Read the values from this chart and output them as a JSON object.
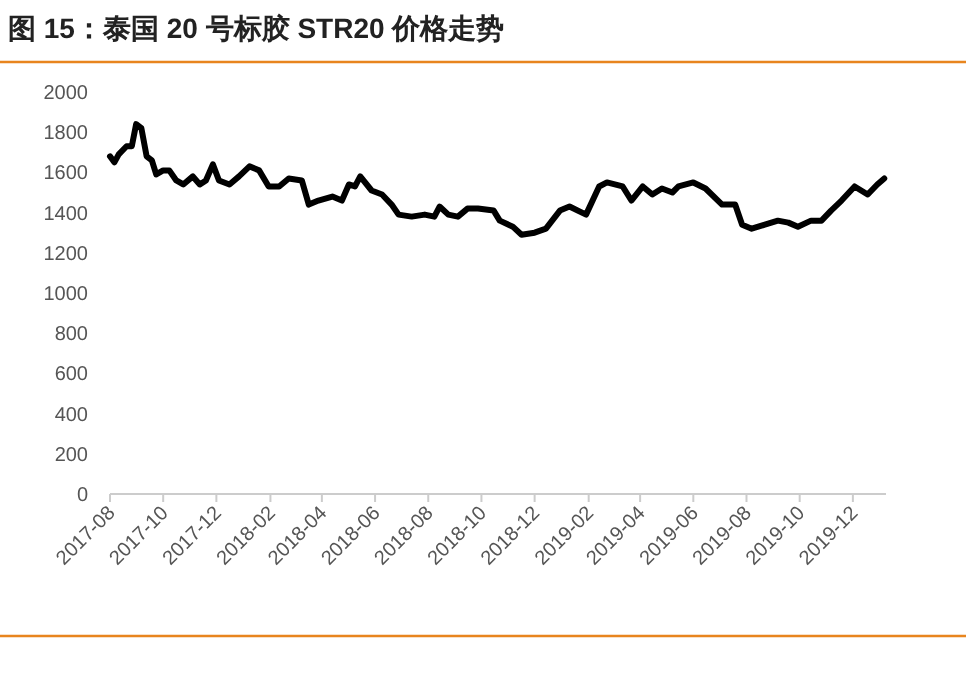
{
  "chart_data": {
    "type": "line",
    "title": "图 15：泰国 20 号标胶 STR20 价格走势",
    "x": [
      "2017-08-01",
      "2017-08-06",
      "2017-08-11",
      "2017-08-20",
      "2017-08-26",
      "2017-08-31",
      "2017-09-06",
      "2017-09-12",
      "2017-09-18",
      "2017-09-23",
      "2017-10-01",
      "2017-10-08",
      "2017-10-16",
      "2017-10-24",
      "2017-11-04",
      "2017-11-12",
      "2017-11-19",
      "2017-11-27",
      "2017-12-04",
      "2017-12-16",
      "2017-12-27",
      "2018-01-08",
      "2018-01-19",
      "2018-01-30",
      "2018-02-11",
      "2018-02-22",
      "2018-03-09",
      "2018-03-17",
      "2018-03-28",
      "2018-04-13",
      "2018-04-24",
      "2018-05-02",
      "2018-05-09",
      "2018-05-15",
      "2018-05-28",
      "2018-06-09",
      "2018-06-20",
      "2018-06-28",
      "2018-07-13",
      "2018-07-28",
      "2018-08-08",
      "2018-08-14",
      "2018-08-24",
      "2018-09-04",
      "2018-09-15",
      "2018-09-27",
      "2018-10-15",
      "2018-10-22",
      "2018-11-06",
      "2018-11-16",
      "2018-12-01",
      "2018-12-14",
      "2018-12-30",
      "2019-01-10",
      "2019-01-29",
      "2019-02-13",
      "2019-02-22",
      "2019-03-12",
      "2019-03-22",
      "2019-04-04",
      "2019-04-15",
      "2019-04-26",
      "2019-05-08",
      "2019-05-15",
      "2019-06-01",
      "2019-06-15",
      "2019-07-04",
      "2019-07-19",
      "2019-07-27",
      "2019-08-07",
      "2019-08-22",
      "2019-09-06",
      "2019-09-18",
      "2019-09-29",
      "2019-10-14",
      "2019-10-26",
      "2019-11-06",
      "2019-11-18",
      "2019-12-03",
      "2019-12-18",
      "2019-12-29",
      "2020-01-06"
    ],
    "series": [
      {
        "color": "#000000",
        "values": [
          1680,
          1650,
          1690,
          1730,
          1730,
          1840,
          1820,
          1680,
          1660,
          1590,
          1610,
          1610,
          1560,
          1540,
          1580,
          1540,
          1560,
          1640,
          1560,
          1540,
          1580,
          1630,
          1610,
          1530,
          1530,
          1570,
          1560,
          1440,
          1460,
          1480,
          1460,
          1540,
          1530,
          1580,
          1510,
          1490,
          1440,
          1390,
          1380,
          1390,
          1380,
          1430,
          1390,
          1380,
          1420,
          1420,
          1410,
          1360,
          1330,
          1290,
          1300,
          1320,
          1410,
          1430,
          1390,
          1530,
          1550,
          1530,
          1460,
          1530,
          1490,
          1520,
          1500,
          1530,
          1550,
          1520,
          1440,
          1440,
          1340,
          1320,
          1340,
          1360,
          1350,
          1330,
          1360,
          1360,
          1410,
          1460,
          1530,
          1490,
          1540,
          1570
        ]
      }
    ],
    "xlim": [
      "2017-08-01",
      "2020-01-08"
    ],
    "xticks": [
      "2017-08",
      "2017-10",
      "2017-12",
      "2018-02",
      "2018-04",
      "2018-06",
      "2018-08",
      "2018-10",
      "2018-12",
      "2019-02",
      "2019-04",
      "2019-06",
      "2019-08",
      "2019-10",
      "2019-12"
    ],
    "ylim": [
      0,
      2000
    ],
    "yticks": [
      0,
      200,
      400,
      600,
      800,
      1000,
      1200,
      1400,
      1600,
      1800,
      2000
    ],
    "grid": false,
    "marker": "none",
    "line_style": "solid"
  }
}
